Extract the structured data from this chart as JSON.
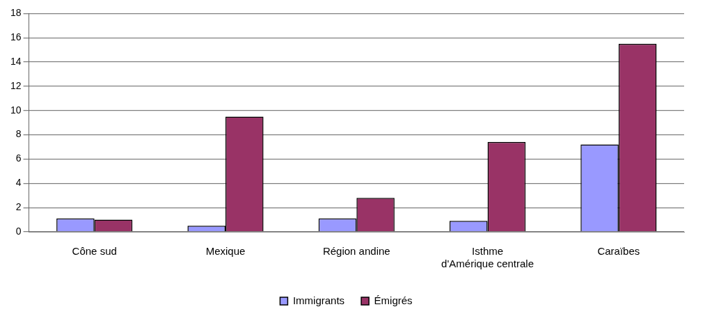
{
  "chart_data": {
    "type": "bar",
    "categories": [
      "Cône sud",
      "Mexique",
      "Région andine",
      "Isthme d'Amérique centrale",
      "Caraïbes"
    ],
    "series": [
      {
        "name": "Immigrants",
        "color": "#9999ff",
        "values": [
          1.1,
          0.5,
          1.1,
          0.9,
          7.2
        ]
      },
      {
        "name": "Émigrés",
        "color": "#993366",
        "values": [
          1.0,
          9.5,
          2.8,
          7.4,
          15.5
        ]
      }
    ],
    "ylim": [
      0,
      18
    ],
    "yticks": [
      0,
      2,
      4,
      6,
      8,
      10,
      12,
      14,
      16,
      18
    ],
    "grid": "y",
    "legend": "bottom"
  }
}
